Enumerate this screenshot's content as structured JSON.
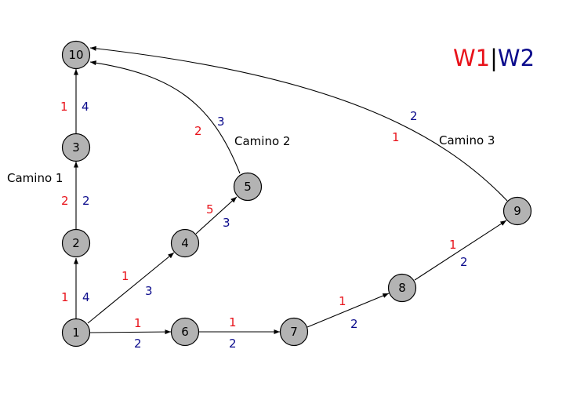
{
  "legend": {
    "w1_label": "W1",
    "separator": "|",
    "w2_label": "W2",
    "w1_color": "#e8121a",
    "w2_color": "#0b0b8c"
  },
  "nodes": [
    {
      "id": "1",
      "label": "1"
    },
    {
      "id": "2",
      "label": "2"
    },
    {
      "id": "3",
      "label": "3"
    },
    {
      "id": "10",
      "label": "10"
    },
    {
      "id": "4",
      "label": "4"
    },
    {
      "id": "5",
      "label": "5"
    },
    {
      "id": "6",
      "label": "6"
    },
    {
      "id": "7",
      "label": "7"
    },
    {
      "id": "8",
      "label": "8"
    },
    {
      "id": "9",
      "label": "9"
    }
  ],
  "edges": [
    {
      "from": "1",
      "to": "2",
      "w1": "1",
      "w2": "4"
    },
    {
      "from": "2",
      "to": "3",
      "w1": "2",
      "w2": "2"
    },
    {
      "from": "3",
      "to": "10",
      "w1": "1",
      "w2": "4"
    },
    {
      "from": "1",
      "to": "4",
      "w1": "1",
      "w2": "3"
    },
    {
      "from": "4",
      "to": "5",
      "w1": "5",
      "w2": "3"
    },
    {
      "from": "5",
      "to": "10",
      "w1": "2",
      "w2": "3"
    },
    {
      "from": "1",
      "to": "6",
      "w1": "1",
      "w2": "2"
    },
    {
      "from": "6",
      "to": "7",
      "w1": "1",
      "w2": "2"
    },
    {
      "from": "7",
      "to": "8",
      "w1": "1",
      "w2": "2"
    },
    {
      "from": "8",
      "to": "9",
      "w1": "1",
      "w2": "2"
    },
    {
      "from": "9",
      "to": "10",
      "w1": "1",
      "w2": "2"
    }
  ],
  "paths": [
    {
      "label": "Camino 1"
    },
    {
      "label": "Camino 2"
    },
    {
      "label": "Camino 3"
    }
  ]
}
